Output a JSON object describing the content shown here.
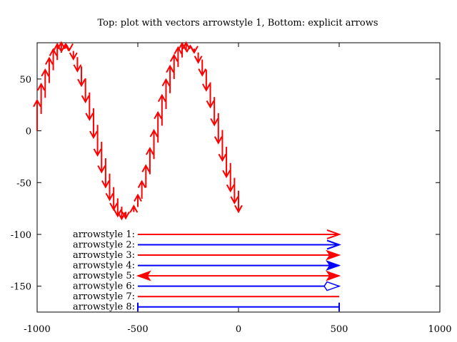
{
  "chart_data": {
    "type": "line",
    "title": "Top: plot with vectors arrowstyle 1, Bottom: explicit arrows",
    "xlim": [
      -1000,
      1000
    ],
    "ylim": [
      -175,
      85
    ],
    "xticks": [
      -1000,
      -500,
      0,
      500,
      1000
    ],
    "yticks": [
      50,
      0,
      -50,
      -100,
      -150
    ],
    "grid": false,
    "vectors": {
      "name": "plot with vectors arrowstyle 1",
      "color": "#ff0000",
      "x_start": -1000,
      "x_step": 20,
      "amplitude": 80,
      "period": 614,
      "count": 51
    },
    "explicit_arrows": [
      {
        "label": "arrowstyle 1:",
        "y": -100,
        "x_from": -500,
        "x_to": 500,
        "color": "#ff0000",
        "head": "open",
        "heads": "end",
        "filled": false
      },
      {
        "label": "arrowstyle 2:",
        "y": -110,
        "x_from": -500,
        "x_to": 500,
        "color": "#0000ff",
        "head": "open",
        "heads": "end",
        "filled": false
      },
      {
        "label": "arrowstyle 3:",
        "y": -120,
        "x_from": -500,
        "x_to": 500,
        "color": "#ff0000",
        "head": "filled",
        "heads": "end",
        "filled": true
      },
      {
        "label": "arrowstyle 4:",
        "y": -130,
        "x_from": -500,
        "x_to": 500,
        "color": "#0000ff",
        "head": "filled",
        "heads": "end",
        "filled": true
      },
      {
        "label": "arrowstyle 5:",
        "y": -140,
        "x_from": -500,
        "x_to": 500,
        "color": "#ff0000",
        "head": "filled",
        "heads": "both",
        "filled": true
      },
      {
        "label": "arrowstyle 6:",
        "y": -150,
        "x_from": -500,
        "x_to": 500,
        "color": "#0000ff",
        "head": "empty",
        "heads": "end",
        "filled": false
      },
      {
        "label": "arrowstyle 7:",
        "y": -160,
        "x_from": -500,
        "x_to": 500,
        "color": "#ff0000",
        "head": "none",
        "heads": "none",
        "filled": false
      },
      {
        "label": "arrowstyle 8:",
        "y": -170,
        "x_from": -500,
        "x_to": 500,
        "color": "#0000ff",
        "head": "bar",
        "heads": "both",
        "filled": false
      }
    ]
  }
}
